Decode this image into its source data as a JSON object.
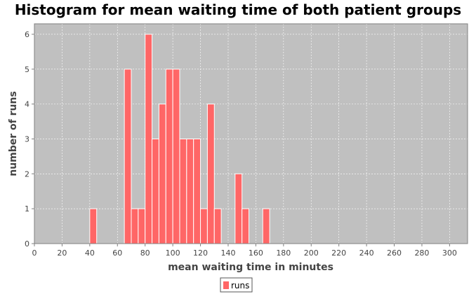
{
  "colors": {
    "plot_background": "#c0c0c0",
    "bar_fill": "#ff6666",
    "bar_stroke": "#ffffff",
    "grid": "#ffffff",
    "axis": "#808080"
  },
  "chart_data": {
    "type": "bar",
    "title": "Histogram for mean waiting time of both patient groups",
    "xlabel": "mean waiting time in minutes",
    "ylabel": "number of runs",
    "xlim": [
      0,
      313
    ],
    "ylim": [
      0,
      6.3
    ],
    "xticks": [
      0,
      20,
      40,
      60,
      80,
      100,
      120,
      140,
      160,
      180,
      200,
      220,
      240,
      260,
      280,
      300
    ],
    "yticks": [
      0,
      1,
      2,
      3,
      4,
      5,
      6
    ],
    "grid": true,
    "legend_position": "bottom-center",
    "bin_width": 5,
    "series": [
      {
        "name": "runs",
        "bins": [
          {
            "start": 40,
            "count": 1
          },
          {
            "start": 65,
            "count": 5
          },
          {
            "start": 70,
            "count": 1
          },
          {
            "start": 75,
            "count": 1
          },
          {
            "start": 80,
            "count": 6
          },
          {
            "start": 85,
            "count": 3
          },
          {
            "start": 90,
            "count": 4
          },
          {
            "start": 95,
            "count": 5
          },
          {
            "start": 100,
            "count": 5
          },
          {
            "start": 105,
            "count": 3
          },
          {
            "start": 110,
            "count": 3
          },
          {
            "start": 115,
            "count": 3
          },
          {
            "start": 120,
            "count": 1
          },
          {
            "start": 125,
            "count": 4
          },
          {
            "start": 130,
            "count": 1
          },
          {
            "start": 145,
            "count": 2
          },
          {
            "start": 150,
            "count": 1
          },
          {
            "start": 165,
            "count": 1
          }
        ]
      }
    ]
  }
}
